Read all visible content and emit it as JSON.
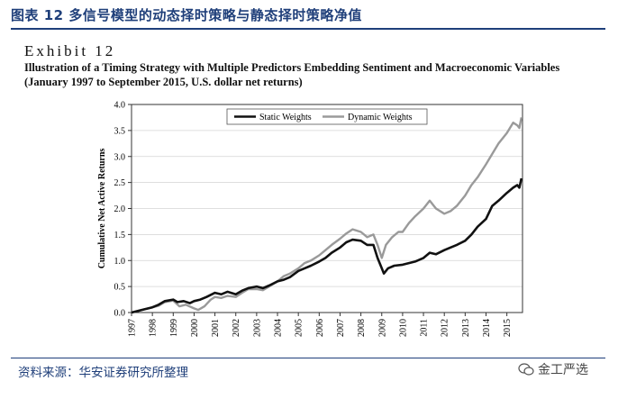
{
  "figure": {
    "title": "图表 12 多信号模型的动态择时策略与静态择时策略净值",
    "exhibit_label": "Exhibit 12",
    "subtitle_line1": "Illustration of a Timing Strategy with Multiple Predictors Embedding Sentiment and Macroeconomic Variables",
    "subtitle_line2": "(January 1997 to September 2015, U.S. dollar net returns)",
    "source": "资料来源：华安证券研究所整理",
    "watermark": "金工严选"
  },
  "colors": {
    "static": "#111111",
    "dynamic": "#9a9a9a",
    "accent": "#1f3f7a"
  },
  "chart_data": {
    "type": "line",
    "title": "",
    "xlabel": "",
    "ylabel": "Cumulative Net Active Returns",
    "xlim": [
      1997,
      2015.75
    ],
    "ylim": [
      0.0,
      4.0
    ],
    "yticks": [
      "0.0",
      "0.5",
      "1.0",
      "1.5",
      "2.0",
      "2.5",
      "3.0",
      "3.5",
      "4.0"
    ],
    "xticks": [
      "1997",
      "1998",
      "1999",
      "2000",
      "2001",
      "2002",
      "2003",
      "2004",
      "2005",
      "2006",
      "2007",
      "2008",
      "2009",
      "2010",
      "2011",
      "2012",
      "2013",
      "2014",
      "2015"
    ],
    "legend": {
      "position": "top-center",
      "entries": [
        "Static Weights",
        "Dynamic Weights"
      ]
    },
    "series": [
      {
        "name": "Static Weights",
        "x": [
          1997.0,
          1997.3,
          1997.6,
          1998.0,
          1998.3,
          1998.6,
          1999.0,
          1999.2,
          1999.5,
          1999.8,
          2000.0,
          2000.3,
          2000.6,
          2001.0,
          2001.3,
          2001.6,
          2002.0,
          2002.3,
          2002.6,
          2003.0,
          2003.3,
          2003.6,
          2004.0,
          2004.3,
          2004.6,
          2005.0,
          2005.3,
          2005.6,
          2006.0,
          2006.3,
          2006.6,
          2007.0,
          2007.3,
          2007.6,
          2008.0,
          2008.3,
          2008.6,
          2008.8,
          2009.0,
          2009.1,
          2009.3,
          2009.6,
          2010.0,
          2010.3,
          2010.6,
          2011.0,
          2011.3,
          2011.6,
          2012.0,
          2012.3,
          2012.6,
          2013.0,
          2013.3,
          2013.6,
          2014.0,
          2014.3,
          2014.6,
          2015.0,
          2015.3,
          2015.5,
          2015.6,
          2015.7
        ],
        "values": [
          0.0,
          0.03,
          0.06,
          0.1,
          0.15,
          0.22,
          0.25,
          0.2,
          0.22,
          0.18,
          0.22,
          0.25,
          0.3,
          0.38,
          0.35,
          0.4,
          0.35,
          0.42,
          0.47,
          0.5,
          0.47,
          0.52,
          0.6,
          0.63,
          0.68,
          0.8,
          0.85,
          0.9,
          0.98,
          1.05,
          1.15,
          1.25,
          1.35,
          1.4,
          1.38,
          1.3,
          1.3,
          1.05,
          0.85,
          0.75,
          0.85,
          0.9,
          0.92,
          0.95,
          0.98,
          1.05,
          1.15,
          1.12,
          1.2,
          1.25,
          1.3,
          1.38,
          1.5,
          1.65,
          1.8,
          2.05,
          2.15,
          2.3,
          2.4,
          2.45,
          2.4,
          2.58
        ]
      },
      {
        "name": "Dynamic Weights",
        "x": [
          1997.0,
          1997.3,
          1997.6,
          1998.0,
          1998.3,
          1998.6,
          1999.0,
          1999.3,
          1999.6,
          2000.0,
          2000.2,
          2000.5,
          2000.8,
          2001.0,
          2001.3,
          2001.6,
          2002.0,
          2002.3,
          2002.6,
          2003.0,
          2003.3,
          2003.6,
          2004.0,
          2004.3,
          2004.6,
          2005.0,
          2005.3,
          2005.6,
          2006.0,
          2006.3,
          2006.6,
          2007.0,
          2007.3,
          2007.6,
          2008.0,
          2008.3,
          2008.6,
          2008.8,
          2009.0,
          2009.2,
          2009.5,
          2009.8,
          2010.0,
          2010.3,
          2010.6,
          2011.0,
          2011.3,
          2011.6,
          2012.0,
          2012.3,
          2012.6,
          2013.0,
          2013.3,
          2013.6,
          2014.0,
          2014.3,
          2014.6,
          2015.0,
          2015.3,
          2015.5,
          2015.6,
          2015.7
        ],
        "values": [
          0.0,
          0.03,
          0.06,
          0.1,
          0.13,
          0.2,
          0.23,
          0.12,
          0.15,
          0.08,
          0.05,
          0.12,
          0.25,
          0.3,
          0.28,
          0.32,
          0.3,
          0.38,
          0.45,
          0.45,
          0.43,
          0.5,
          0.6,
          0.7,
          0.75,
          0.85,
          0.95,
          1.0,
          1.1,
          1.2,
          1.3,
          1.42,
          1.52,
          1.6,
          1.55,
          1.45,
          1.5,
          1.3,
          1.05,
          1.3,
          1.45,
          1.55,
          1.55,
          1.72,
          1.85,
          2.0,
          2.15,
          2.0,
          1.9,
          1.95,
          2.05,
          2.25,
          2.45,
          2.6,
          2.85,
          3.05,
          3.25,
          3.45,
          3.65,
          3.6,
          3.55,
          3.75
        ]
      }
    ]
  }
}
